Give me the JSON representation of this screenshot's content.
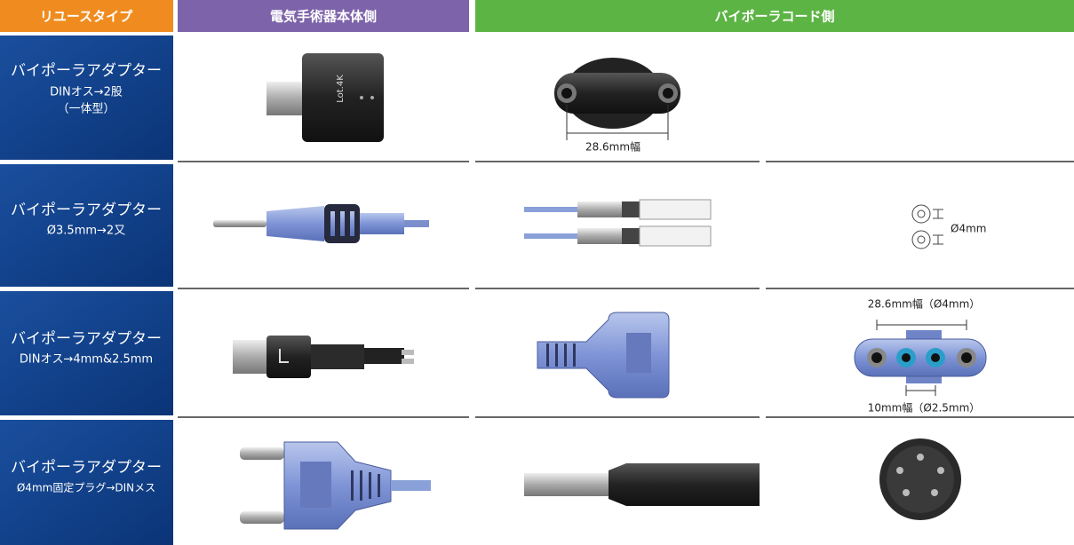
{
  "header": [
    "リユースタイプ",
    "電気手術器本体側",
    "バイポーラコード側"
  ],
  "rows": [
    {
      "label": [
        "バイポーラアダプター",
        "DINオス→2股",
        "（一体型）"
      ],
      "notes": [
        "Lot.4K",
        "28.6mm幅"
      ]
    },
    {
      "label": [
        "バイポーラアダプター",
        "Ø3.5mm→2又"
      ],
      "notes": [
        "Ø4mm"
      ]
    },
    {
      "label": [
        "バイポーラアダプター",
        "DINオス→4mm&2.5mm"
      ],
      "notes": [
        "28.6mm幅（Ø4mm）",
        "10mm幅（Ø2.5mm）"
      ]
    },
    {
      "label": [
        "バイポーラアダプター",
        "Ø4mm固定プラグ→DINメス"
      ],
      "notes": []
    }
  ]
}
